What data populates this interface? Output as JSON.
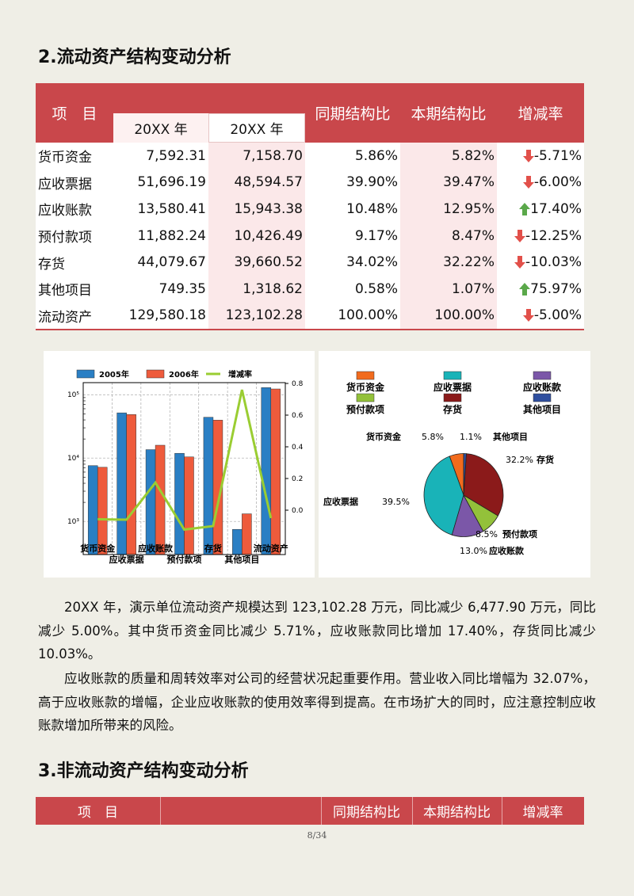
{
  "heading": "2.流动资产结构变动分析",
  "table": {
    "header": [
      "项　目",
      "20XX 年",
      "20XX 年",
      "同期结构比",
      "本期结构比",
      "增减率"
    ],
    "rows": [
      [
        "货币资金",
        "7,592.31",
        "7,158.70",
        "5.86%",
        "5.82%",
        "-5.71%"
      ],
      [
        "应收票据",
        "51,696.19",
        "48,594.57",
        "39.90%",
        "39.47%",
        "-6.00%"
      ],
      [
        "应收账款",
        "13,580.41",
        "15,943.38",
        "10.48%",
        "12.95%",
        "17.40%"
      ],
      [
        "预付款项",
        "11,882.24",
        "10,426.49",
        "9.17%",
        "8.47%",
        "-12.25%"
      ],
      [
        "存货",
        "44,079.67",
        "39,660.52",
        "34.02%",
        "32.22%",
        "-10.03%"
      ],
      [
        "其他项目",
        "749.35",
        "1,318.62",
        "0.58%",
        "1.07%",
        "75.97%"
      ],
      [
        "流动资产",
        "129,580.18",
        "123,102.28",
        "100.00%",
        "100.00%",
        "-5.00%"
      ]
    ]
  },
  "chart_data": [
    {
      "type": "bar",
      "categories": [
        "货币资金",
        "应收票据",
        "应收账款",
        "预付款项",
        "存货",
        "其他项目",
        "流动资产"
      ],
      "series": [
        {
          "name": "2005年",
          "color": "#2a7fc4",
          "values": [
            7592.31,
            51696.19,
            13580.41,
            11882.24,
            44079.67,
            749.35,
            129580.18
          ]
        },
        {
          "name": "2006年",
          "color": "#ee5b3c",
          "values": [
            7158.7,
            48594.57,
            15943.38,
            10426.49,
            39660.52,
            1318.62,
            123102.28
          ]
        },
        {
          "name": "增减率",
          "color": "#9acd32",
          "type": "line",
          "axis": "y2",
          "values": [
            -0.0571,
            -0.06,
            0.174,
            -0.1225,
            -0.1003,
            0.7597,
            -0.05
          ]
        }
      ],
      "log_scale": true,
      "ylim": [
        300,
        155000
      ],
      "yticks": [
        {
          "value": 1000,
          "label": "10³"
        },
        {
          "value": 10000,
          "label": "10⁴"
        },
        {
          "value": 100000,
          "label": "10⁵"
        }
      ],
      "y2lim": [
        -0.28,
        0.805
      ],
      "y2ticks": [
        {
          "value": 0,
          "label": "0.0"
        },
        0.2,
        0.4,
        0.6,
        0.8
      ],
      "grid": true
    },
    {
      "type": "pie",
      "categories": [
        "货币资金",
        "应收票据",
        "应收账款",
        "预付款项",
        "存货",
        "其他项目"
      ],
      "values": [
        5.8,
        39.5,
        13.0,
        8.5,
        32.2,
        1.1
      ],
      "value_labels": [
        "5.8%",
        "39.5%",
        "13.0%",
        "8.5%",
        "32.2%",
        "1.1%"
      ],
      "colors": [
        "#f26b1d",
        "#19b3b8",
        "#7b57a8",
        "#93c13a",
        "#8b1a1a",
        "#2f4f9f"
      ]
    }
  ],
  "paragraphs": [
    "20XX 年，演示单位流动资产规模达到 123,102.28 万元，同比减少 6,477.90 万元，同比减少 5.00%。其中货币资金同比减少 5.71%，应收账款同比增加 17.40%，存货同比减少 10.03%。",
    "应收账款的质量和周转效率对公司的经营状况起重要作用。营业收入同比增幅为 32.07%，高于应收账款的增幅，企业应收账款的使用效率得到提高。在市场扩大的同时，应注意控制应收账款增加所带来的风险。"
  ],
  "heading2": "3.非流动资产结构变动分析",
  "table2": {
    "header": [
      "项　目",
      "同期结构比",
      "本期结构比",
      "增减率"
    ]
  },
  "page_number": "8/34"
}
